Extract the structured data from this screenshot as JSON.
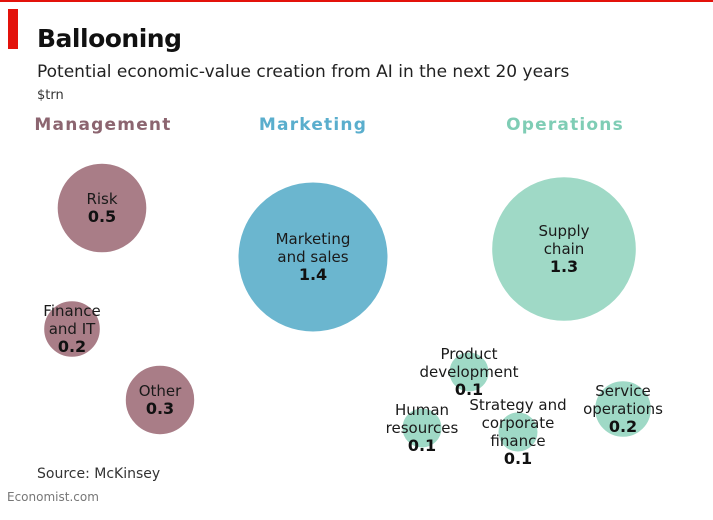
{
  "header": {
    "title": "Ballooning",
    "subtitle": "Potential economic-value creation from AI in the next 20 years",
    "unit": "$trn"
  },
  "footer": {
    "source": "Source: McKinsey",
    "brand": "Economist.com"
  },
  "colors": {
    "accent": "#e3120b",
    "management": "#a97d87",
    "management_label": "#8c6570",
    "marketing": "#6bb6cf",
    "marketing_label": "#5aaecd",
    "operations": "#9fd9c6",
    "operations_label": "#7fcdb5"
  },
  "chart_data": {
    "type": "bubble",
    "title": "Ballooning",
    "subtitle": "Potential economic-value creation from AI in the next 20 years",
    "unit": "$trn",
    "groups": [
      {
        "name": "Management",
        "items": [
          {
            "name": "Risk",
            "label_lines": [
              "Risk"
            ],
            "value": 0.5
          },
          {
            "name": "Finance and IT",
            "label_lines": [
              "Finance",
              "and IT"
            ],
            "value": 0.2
          },
          {
            "name": "Other",
            "label_lines": [
              "Other"
            ],
            "value": 0.3
          }
        ]
      },
      {
        "name": "Marketing",
        "items": [
          {
            "name": "Marketing and sales",
            "label_lines": [
              "Marketing",
              "and sales"
            ],
            "value": 1.4
          }
        ]
      },
      {
        "name": "Operations",
        "items": [
          {
            "name": "Supply chain",
            "label_lines": [
              "Supply",
              "chain"
            ],
            "value": 1.3
          },
          {
            "name": "Product development",
            "label_lines": [
              "Product",
              "development"
            ],
            "value": 0.1
          },
          {
            "name": "Human resources",
            "label_lines": [
              "Human",
              "resources"
            ],
            "value": 0.1
          },
          {
            "name": "Strategy and corporate finance",
            "label_lines": [
              "Strategy and",
              "corporate",
              "finance"
            ],
            "value": 0.1
          },
          {
            "name": "Service operations",
            "label_lines": [
              "Service",
              "operations"
            ],
            "value": 0.2
          }
        ]
      }
    ]
  }
}
